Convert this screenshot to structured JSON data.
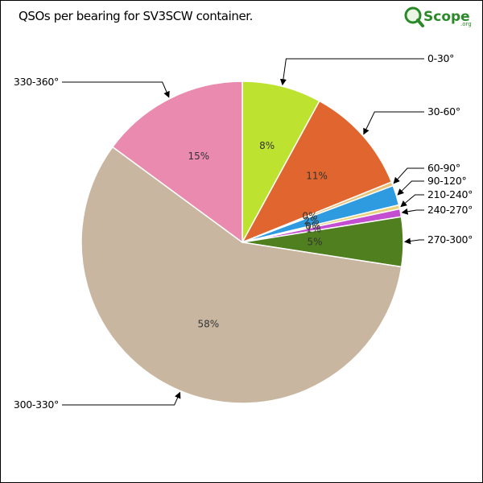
{
  "chart_data": {
    "type": "pie",
    "title": "QSOs per bearing for SV3SCW container.",
    "slices": [
      {
        "label": "0-30°",
        "value": 8,
        "percent_label": "8%",
        "color": "#bde22f"
      },
      {
        "label": "30-60°",
        "value": 11,
        "percent_label": "11%",
        "color": "#e0652e"
      },
      {
        "label": "60-90°",
        "value": 0.4,
        "percent_label": "0%",
        "color": "#e8c27a"
      },
      {
        "label": "90-120°",
        "value": 2,
        "percent_label": "2%",
        "color": "#2e9ae0"
      },
      {
        "label": "210-240°",
        "value": 0.4,
        "percent_label": "0%",
        "color": "#e8d27a"
      },
      {
        "label": "240-270°",
        "value": 0.8,
        "percent_label": "1%",
        "color": "#c34ed1"
      },
      {
        "label": "270-300°",
        "value": 5,
        "percent_label": "5%",
        "color": "#4f7f1e"
      },
      {
        "label": "300-330°",
        "value": 58,
        "percent_label": "58%",
        "color": "#c8b6a0"
      },
      {
        "label": "330-360°",
        "value": 15,
        "percent_label": "15%",
        "color": "#ea8aae"
      }
    ]
  },
  "logo": {
    "text": "Scope",
    "suffix": ".org",
    "color": "#2a8a2a"
  }
}
